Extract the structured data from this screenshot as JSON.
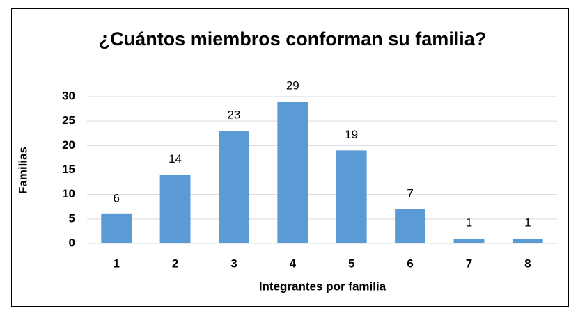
{
  "chart_data": {
    "type": "bar",
    "title": "¿Cuántos miembros conforman su familia?",
    "xlabel": "Integrantes por familia",
    "ylabel": "Familias",
    "categories": [
      "1",
      "2",
      "3",
      "4",
      "5",
      "6",
      "7",
      "8"
    ],
    "values": [
      6,
      14,
      23,
      29,
      19,
      7,
      1,
      1
    ],
    "color": "#5b9bd5",
    "ylim": [
      0,
      30
    ],
    "yticks": [
      0,
      5,
      10,
      15,
      20,
      25,
      30
    ],
    "grid": true
  }
}
